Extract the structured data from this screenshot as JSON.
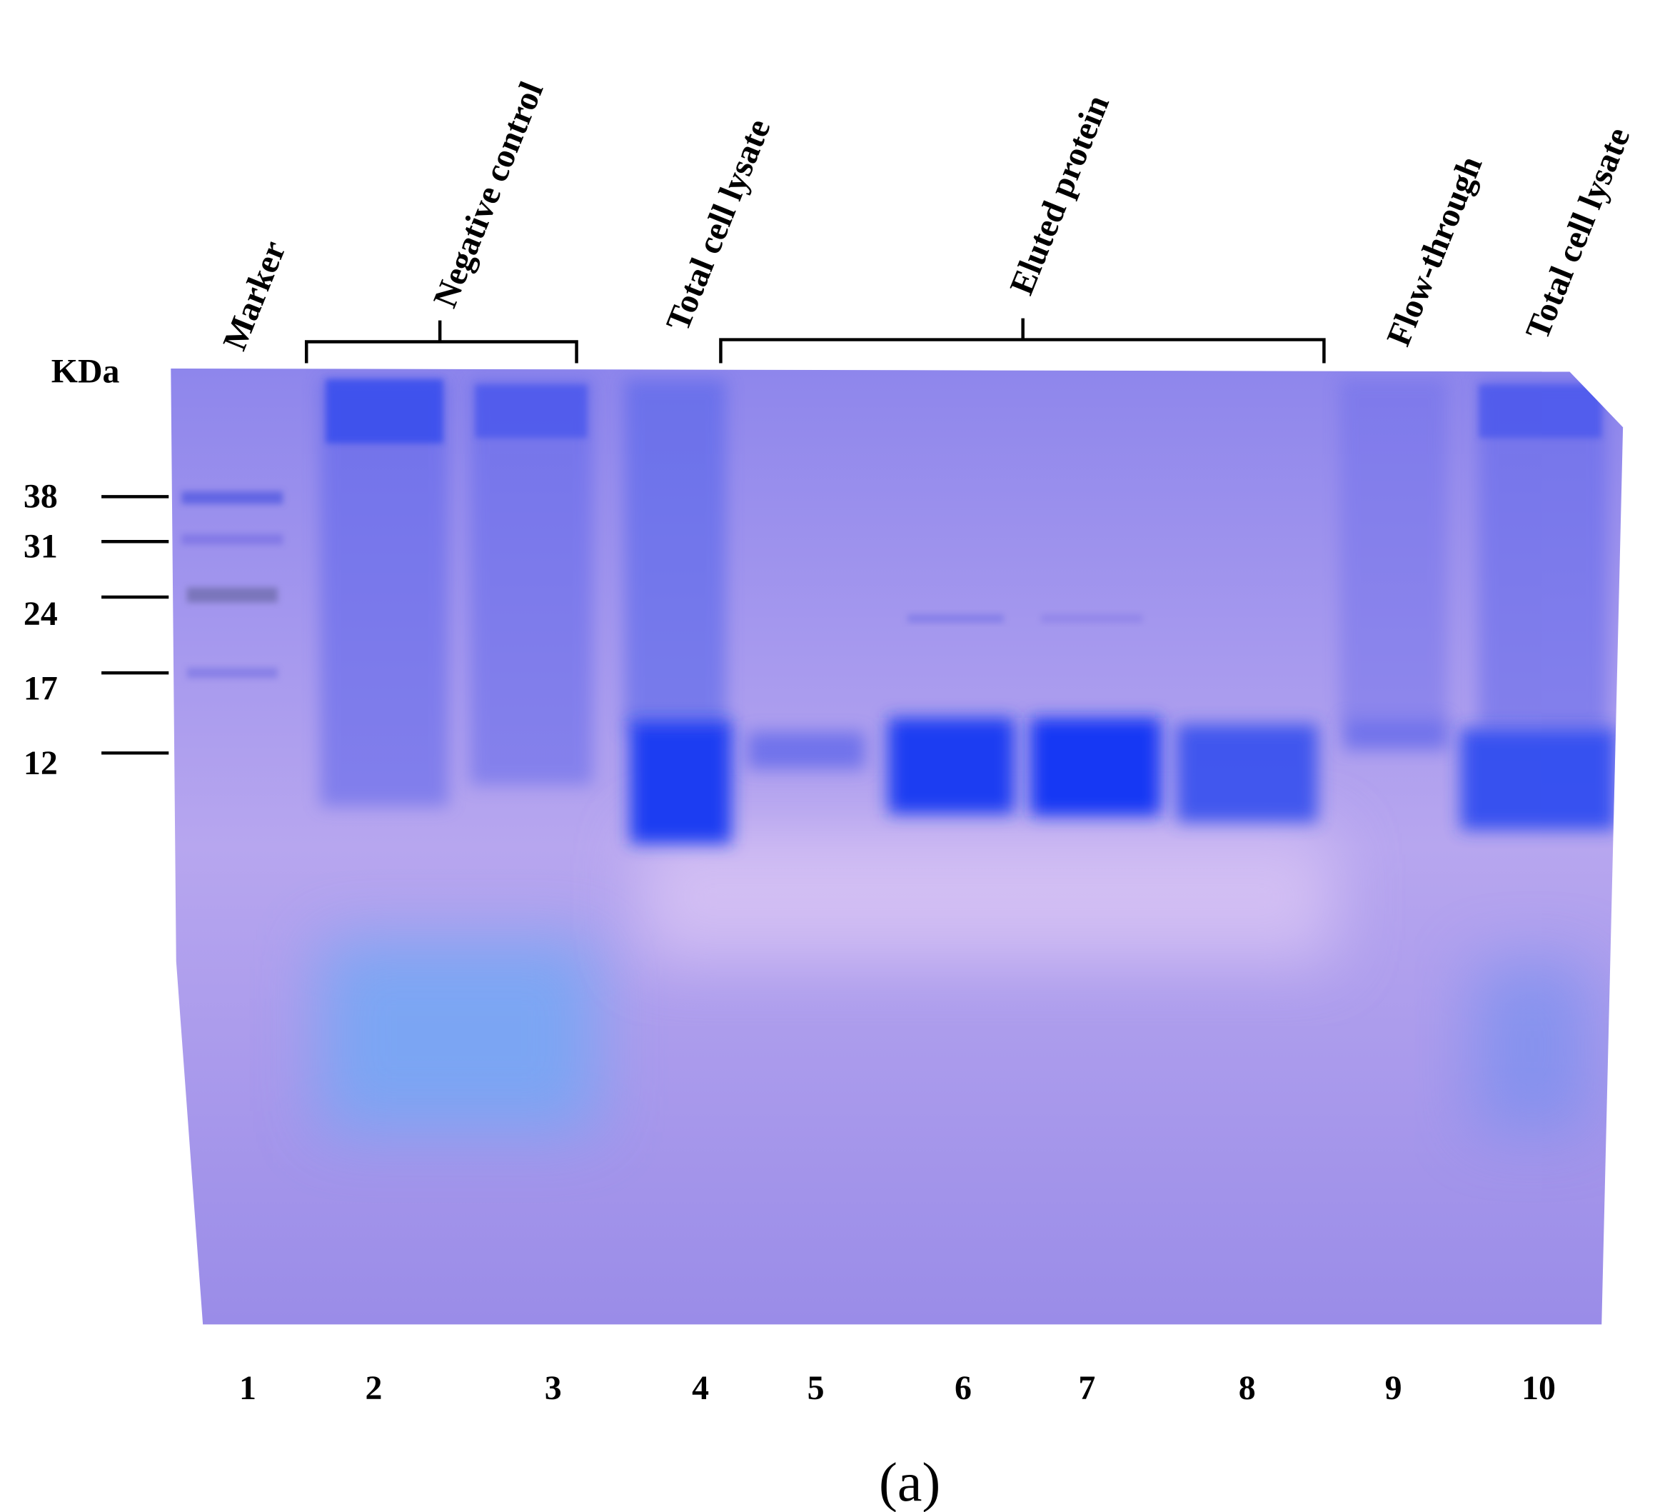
{
  "figure": {
    "unit_label": "KDa",
    "markers": [
      "38",
      "31",
      "24",
      "17",
      "12"
    ],
    "top_labels": [
      "Marker",
      "Negative control",
      "Total cell lysate",
      "Eluted protein",
      "Flow-through",
      "Total cell lysate"
    ],
    "lane_numbers": [
      "1",
      "2",
      "3",
      "4",
      "5",
      "6",
      "7",
      "8",
      "9",
      "10"
    ],
    "caption": "(a)"
  }
}
